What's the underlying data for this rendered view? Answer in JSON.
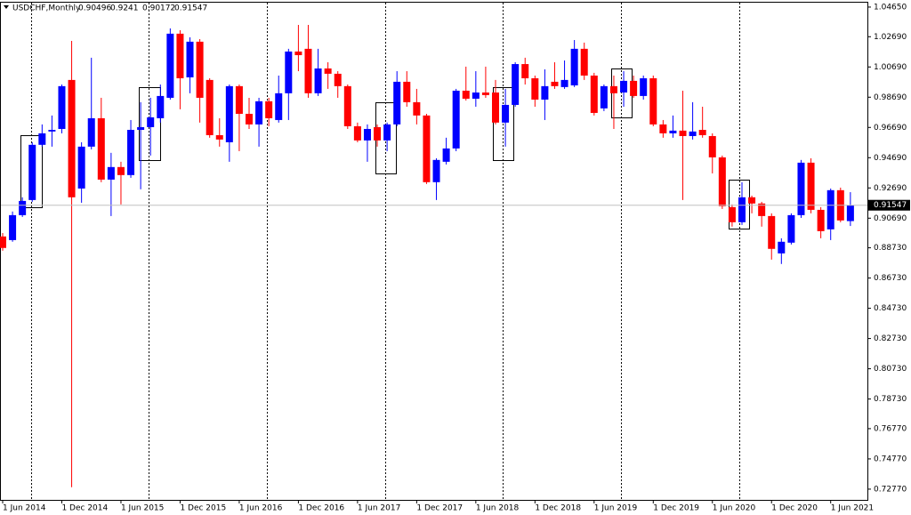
{
  "chart_data": {
    "type": "candlestick",
    "title": "USDCHF,Monthly",
    "up_color": "#0000ff",
    "down_color": "#ff0000",
    "ylim": [
      0.7206,
      1.05
    ],
    "yticks": [
      {
        "value": 1.0465,
        "label": "1.04650"
      },
      {
        "value": 1.0269,
        "label": "1.02690"
      },
      {
        "value": 1.0069,
        "label": "1.00690"
      },
      {
        "value": 0.9869,
        "label": "0.98690"
      },
      {
        "value": 0.9669,
        "label": "0.96690"
      },
      {
        "value": 0.9469,
        "label": "0.94690"
      },
      {
        "value": 0.9269,
        "label": "0.92690"
      },
      {
        "value": 0.9069,
        "label": "0.90690"
      },
      {
        "value": 0.8873,
        "label": "0.88730"
      },
      {
        "value": 0.8673,
        "label": "0.86730"
      },
      {
        "value": 0.8473,
        "label": "0.84730"
      },
      {
        "value": 0.8273,
        "label": "0.82730"
      },
      {
        "value": 0.8073,
        "label": "0.80730"
      },
      {
        "value": 0.7873,
        "label": "0.78730"
      },
      {
        "value": 0.7677,
        "label": "0.76770"
      },
      {
        "value": 0.7477,
        "label": "0.74770"
      },
      {
        "value": 0.7277,
        "label": "0.72770"
      }
    ],
    "categories": [
      "1 Jun 2014",
      null,
      null,
      null,
      null,
      null,
      "1 Dec 2014",
      null,
      null,
      null,
      null,
      null,
      "1 Jun 2015",
      null,
      null,
      null,
      null,
      null,
      "1 Dec 2015",
      null,
      null,
      null,
      null,
      null,
      "1 Jun 2016",
      null,
      null,
      null,
      null,
      null,
      "1 Dec 2016",
      null,
      null,
      null,
      null,
      null,
      "1 Jun 2017",
      null,
      null,
      null,
      null,
      null,
      "1 Dec 2017",
      null,
      null,
      null,
      null,
      null,
      "1 Jun 2018",
      null,
      null,
      null,
      null,
      null,
      "1 Dec 2018",
      null,
      null,
      null,
      null,
      null,
      "1 Jun 2019",
      null,
      null,
      null,
      null,
      null,
      "1 Dec 2019",
      null,
      null,
      null,
      null,
      null,
      "1 Jun 2020",
      null,
      null,
      null,
      null,
      null,
      "1 Dec 2020",
      null,
      null,
      null,
      null,
      null,
      "1 Jun 2021",
      null,
      null
    ],
    "open": [
      0.8948,
      0.8924,
      0.9089,
      0.9189,
      0.9554,
      0.9642,
      0.9659,
      0.9983,
      0.9265,
      0.9542,
      0.973,
      0.9324,
      0.9407,
      0.9354,
      0.9653,
      0.9671,
      0.973,
      0.9865,
      1.0289,
      1.0,
      1.0236,
      0.9983,
      0.9618,
      0.9571,
      0.9942,
      0.9759,
      0.9689,
      0.9842,
      0.9718,
      0.9895,
      1.0171,
      1.0189,
      0.9895,
      1.0059,
      1.0024,
      0.9942,
      0.9677,
      0.9583,
      0.9671,
      0.9583,
      0.9689,
      0.9971,
      0.9836,
      0.9748,
      0.9307,
      0.9442,
      0.953,
      0.9912,
      0.9859,
      0.99,
      0.99,
      0.9701,
      0.9818,
      1.0088,
      0.9994,
      0.9853,
      0.9971,
      0.9936,
      0.9947,
      1.0189,
      1.0012,
      0.9795,
      0.9942,
      0.99,
      0.9977,
      0.9877,
      0.9994,
      0.9689,
      0.963,
      0.9648,
      0.9612,
      0.9653,
      0.9612,
      0.9471,
      0.9142,
      0.9042,
      0.9207,
      0.9166,
      0.9083,
      0.8836,
      0.8907,
      0.9089,
      0.9436,
      0.9124,
      0.8995,
      0.9254,
      0.90496
    ],
    "high": [
      0.8971,
      0.9113,
      0.9207,
      0.9571,
      0.9689,
      0.9748,
      0.9953,
      1.0241,
      0.9571,
      1.013,
      0.9865,
      0.9501,
      0.9442,
      0.9718,
      0.9836,
      0.9865,
      0.9953,
      1.0324,
      1.0312,
      1.0265,
      1.0253,
      0.9994,
      0.973,
      0.9953,
      0.9953,
      0.9865,
      0.9865,
      0.9865,
      1.0012,
      1.0189,
      1.0347,
      1.0347,
      1.0189,
      1.01,
      1.0041,
      0.9953,
      0.9701,
      0.9689,
      0.9689,
      0.9701,
      1.0041,
      1.0041,
      0.9924,
      0.9759,
      0.9465,
      0.9601,
      0.9924,
      1.0071,
      1.0041,
      1.0071,
      0.9983,
      0.9924,
      1.01,
      1.013,
      1.0012,
      1.0053,
      1.01,
      1.0112,
      1.0247,
      1.023,
      1.003,
      0.9953,
      1.0012,
      1.0041,
      1.0012,
      1.0012,
      1.0012,
      0.9718,
      0.9748,
      0.9912,
      0.9836,
      0.9806,
      0.963,
      0.9483,
      0.916,
      0.9307,
      0.9218,
      0.9177,
      0.9101,
      0.8936,
      0.9101,
      0.9454,
      0.9465,
      0.9142,
      0.9265,
      0.9271,
      0.9241
    ],
    "low": [
      0.8854,
      0.8913,
      0.9077,
      0.9177,
      0.9542,
      0.9542,
      0.963,
      0.729,
      0.9171,
      0.9524,
      0.9307,
      0.9083,
      0.916,
      0.9336,
      0.926,
      0.9483,
      0.9701,
      0.9853,
      0.9789,
      0.9895,
      0.9701,
      0.9601,
      0.9542,
      0.9442,
      0.9512,
      0.9659,
      0.9542,
      0.9677,
      0.9701,
      0.9718,
      1.0041,
      0.9865,
      0.9877,
      0.9924,
      0.9865,
      0.9659,
      0.9571,
      0.9442,
      0.9542,
      0.9512,
      0.9677,
      0.9806,
      0.9689,
      0.9295,
      0.9189,
      0.9424,
      0.9512,
      0.9847,
      0.9806,
      0.9865,
      0.9689,
      0.9542,
      0.9806,
      0.9953,
      0.9806,
      0.9718,
      0.9924,
      0.9924,
      0.9936,
      0.9983,
      0.9748,
      0.9777,
      0.9659,
      0.9806,
      0.9865,
      0.9853,
      0.9677,
      0.9601,
      0.9601,
      0.9189,
      0.9589,
      0.9601,
      0.9365,
      0.913,
      0.9013,
      0.9024,
      0.9101,
      0.9013,
      0.8795,
      0.8766,
      0.8895,
      0.9071,
      0.9101,
      0.8936,
      0.8924,
      0.9042,
      0.90172
    ],
    "close": [
      0.8872,
      0.9089,
      0.9183,
      0.9554,
      0.963,
      0.9653,
      0.9942,
      0.9207,
      0.9542,
      0.973,
      0.9324,
      0.9407,
      0.9354,
      0.9653,
      0.9671,
      0.9736,
      0.9877,
      1.0289,
      0.9994,
      1.0236,
      0.9865,
      0.9618,
      0.9589,
      0.9942,
      0.9759,
      0.9689,
      0.9842,
      0.973,
      0.9895,
      1.0171,
      1.0147,
      0.9895,
      1.0059,
      1.0024,
      0.9942,
      0.9677,
      0.9583,
      0.9659,
      0.9583,
      0.9689,
      0.9971,
      0.9836,
      0.9748,
      0.9307,
      0.9454,
      0.953,
      0.9912,
      0.9859,
      0.99,
      0.9883,
      0.9701,
      0.9818,
      1.0088,
      0.9994,
      0.9853,
      0.9942,
      0.9942,
      0.9983,
      1.0189,
      1.0012,
      0.9765,
      0.9942,
      0.9895,
      0.9977,
      0.9877,
      0.9994,
      0.9689,
      0.963,
      0.9648,
      0.9612,
      0.9642,
      0.9618,
      0.9471,
      0.9148,
      0.9042,
      0.9207,
      0.9166,
      0.9083,
      0.8866,
      0.8913,
      0.9089,
      0.9436,
      0.9124,
      0.8983,
      0.9254,
      0.9054,
      0.91547
    ]
  }
}
